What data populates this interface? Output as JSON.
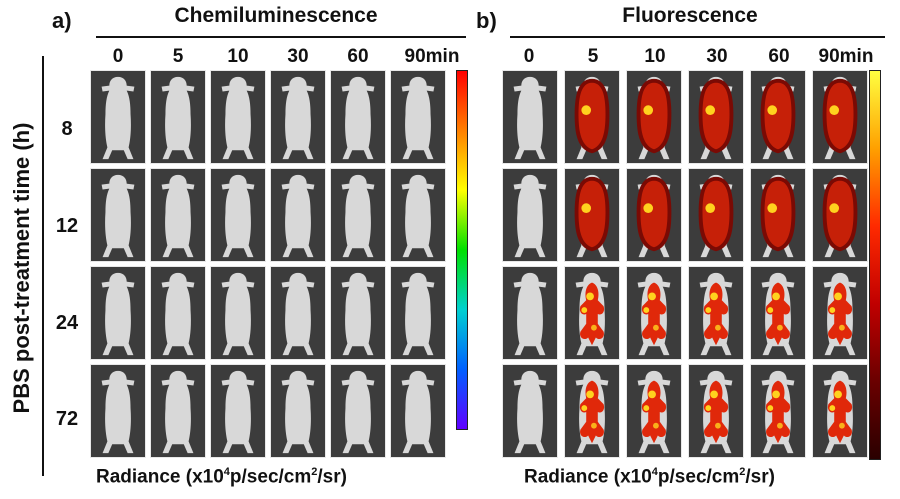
{
  "panel_a": {
    "letter": "a)",
    "title": "Chemiluminescence",
    "columns": [
      "0",
      "5",
      "10",
      "30",
      "60",
      "90min"
    ],
    "xlabel_pre": "Radiance (x10",
    "xlabel_sup": "4",
    "xlabel_mid": "p/sec/cm",
    "xlabel_sup2": "2",
    "xlabel_post": "/sr)"
  },
  "panel_b": {
    "letter": "b)",
    "title": "Fluorescence",
    "columns": [
      "0",
      "5",
      "10",
      "30",
      "60",
      "90min"
    ],
    "xlabel_pre": "Radiance (x10",
    "xlabel_sup": "4",
    "xlabel_mid": "p/sec/cm",
    "xlabel_sup2": "2",
    "xlabel_post": "/sr)"
  },
  "ylabel": "PBS post-treatment time (h)",
  "rows": [
    "8",
    "12",
    "24",
    "72"
  ],
  "colors": {
    "tile_bg": "#3c3c3c",
    "mouse_body": "#d8d8d8",
    "fluor_core": "#ffd21e",
    "fluor_mid": "#e0280a",
    "fluor_dark": "#7a0a04"
  }
}
